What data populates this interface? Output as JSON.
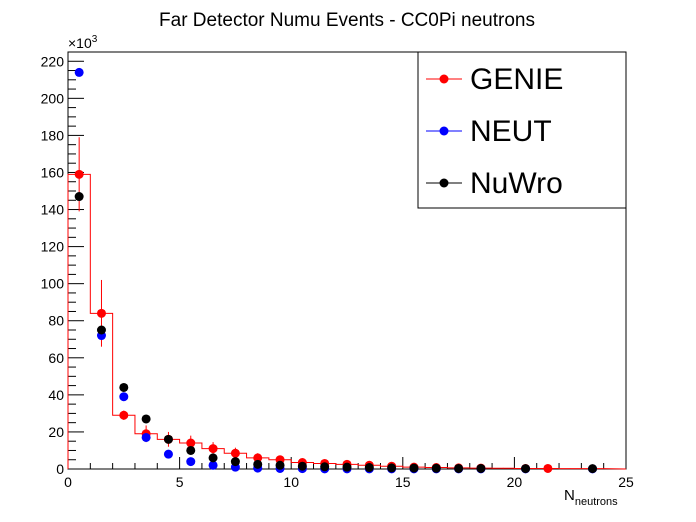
{
  "chart_data": {
    "type": "scatter",
    "title": "Far Detector Numu Events - CC0Pi neutrons",
    "xlabel_main": "N",
    "xlabel_sub": "neutrons",
    "exponent_label_base": "×10",
    "exponent_label_power": "3",
    "xlim": [
      0,
      25
    ],
    "ylim": [
      0,
      225
    ],
    "x_ticks": [
      0,
      5,
      10,
      15,
      20,
      25
    ],
    "y_ticks": [
      0,
      20,
      40,
      60,
      80,
      100,
      120,
      140,
      160,
      180,
      200,
      220
    ],
    "grid": false,
    "legend_position": "top-right",
    "series": [
      {
        "name": "GENIE",
        "color": "#ff0000",
        "style": "step-with-markers",
        "x": [
          0.5,
          1.5,
          2.5,
          3.5,
          4.5,
          5.5,
          6.5,
          7.5,
          8.5,
          9.5,
          10.5,
          11.5,
          12.5,
          13.5,
          14.5,
          15.5,
          16.5,
          17.5,
          18.5,
          19.5,
          20.5,
          21.5,
          22.5,
          23.5
        ],
        "y": [
          159,
          84,
          29,
          19,
          16,
          14,
          11,
          8.5,
          6,
          5,
          3.5,
          3,
          2.5,
          2,
          1.5,
          1,
          0.8,
          0.6,
          0.5,
          0.4,
          0.3,
          0.3,
          0.2,
          0.2
        ],
        "yerr": [
          20,
          18,
          2.5,
          4.5,
          4,
          4,
          3.5,
          3,
          2.5,
          2,
          1.5,
          1.2,
          1,
          0.8,
          0.6,
          0.5,
          0.4,
          0.3,
          0.3,
          0.2,
          0.2,
          0.2,
          0.1,
          0.1
        ],
        "marker_points": [
          0,
          1,
          2,
          3,
          4,
          5,
          6,
          7,
          8,
          9,
          10,
          11,
          12,
          13,
          14,
          15,
          16,
          17,
          18,
          20,
          21
        ]
      },
      {
        "name": "NEUT",
        "color": "#0000ff",
        "style": "markers",
        "x": [
          0.5,
          1.5,
          2.5,
          3.5,
          4.5,
          5.5,
          6.5,
          7.5,
          8.5,
          9.5,
          10.5,
          11.5,
          12.5,
          13.5,
          14.5,
          15.5,
          16.5,
          17.5,
          18.5,
          20.5,
          23.5
        ],
        "y": [
          214,
          72,
          39,
          17,
          8,
          4,
          2,
          1,
          0.5,
          0.3,
          0.2,
          0.1,
          0.1,
          0.1,
          0.1,
          0.1,
          0.1,
          0.1,
          0.1,
          0.1,
          0.1
        ]
      },
      {
        "name": "NuWro",
        "color": "#000000",
        "style": "markers",
        "x": [
          0.5,
          1.5,
          2.5,
          3.5,
          4.5,
          5.5,
          6.5,
          7.5,
          8.5,
          9.5,
          10.5,
          11.5,
          12.5,
          13.5,
          14.5,
          15.5,
          16.5,
          17.5,
          18.5,
          20.5,
          23.5
        ],
        "y": [
          147,
          75,
          44,
          27,
          16,
          10,
          6,
          4,
          2.5,
          2,
          1.5,
          1.2,
          1,
          0.8,
          0.6,
          0.5,
          0.4,
          0.3,
          0.3,
          0.2,
          0.2
        ]
      }
    ]
  }
}
